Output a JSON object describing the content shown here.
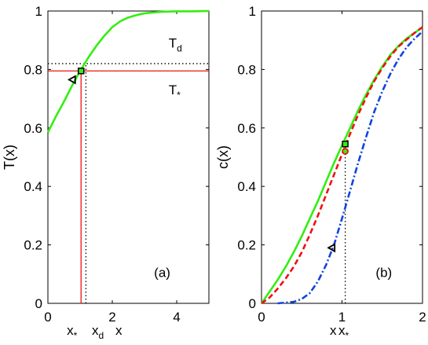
{
  "chart_data": [
    {
      "type": "line",
      "panel_label": "(a)",
      "ylabel": "T(x)",
      "xlabel": "x",
      "xlim": [
        0,
        5
      ],
      "ylim": [
        0,
        1
      ],
      "x_ticks": [
        "0",
        "2",
        "4"
      ],
      "x_tick_values": [
        0,
        2,
        4
      ],
      "y_ticks": [
        "0",
        "0.2",
        "0.4",
        "0.6",
        "0.8",
        "1"
      ],
      "y_tick_values": [
        0,
        0.2,
        0.4,
        0.6,
        0.8,
        1
      ],
      "extra_xlabels": [
        {
          "text": "x",
          "sub": "*",
          "x": 0.75
        },
        {
          "text": "x",
          "sub": "d",
          "x": 1.55
        }
      ],
      "annotations": [
        {
          "text": "T",
          "sub": "d",
          "x": 3.75,
          "y": 0.875
        },
        {
          "text": "T",
          "sub": "*",
          "x": 3.75,
          "y": 0.715
        }
      ],
      "series": [
        {
          "color": "#33ee11",
          "style": "solid",
          "x": [
            0,
            0.25,
            0.5,
            0.75,
            1.0,
            1.25,
            1.5,
            1.75,
            2.0,
            2.25,
            2.5,
            2.75,
            3.0,
            3.25,
            3.5,
            3.75,
            4.0,
            4.5,
            5.0
          ],
          "y": [
            0.585,
            0.64,
            0.69,
            0.745,
            0.795,
            0.84,
            0.88,
            0.915,
            0.945,
            0.965,
            0.978,
            0.986,
            0.992,
            0.995,
            0.997,
            0.998,
            0.999,
            0.999,
            1.0
          ]
        }
      ],
      "ref_lines": [
        {
          "orient": "h",
          "value": 0.795,
          "color": "#ee1111",
          "style": "solid",
          "from": 0,
          "to": 5
        },
        {
          "orient": "v",
          "value": 1.03,
          "color": "#ee1111",
          "style": "solid",
          "from": 0,
          "to": 0.795
        },
        {
          "orient": "h",
          "value": 0.82,
          "color": "#000000",
          "style": "dotted",
          "from": 0,
          "to": 5
        },
        {
          "orient": "v",
          "value": 1.18,
          "color": "#000000",
          "style": "dotted",
          "from": 0,
          "to": 0.82
        }
      ],
      "markers": [
        {
          "shape": "square",
          "x": 1.03,
          "y": 0.795,
          "fill": "#33ee11",
          "stroke": "#000000"
        },
        {
          "shape": "triangle-left",
          "x": 0.75,
          "y": 0.765,
          "fill": "none",
          "stroke": "#000000"
        }
      ]
    },
    {
      "type": "line",
      "panel_label": "(b)",
      "ylabel": "c(x)",
      "xlim": [
        0,
        2
      ],
      "ylim": [
        0,
        1
      ],
      "x_ticks": [
        "0",
        "1",
        "2"
      ],
      "x_tick_values": [
        0,
        1,
        2
      ],
      "y_ticks": [
        "0",
        "0.2",
        "0.4",
        "0.6",
        "0.8",
        "1"
      ],
      "y_tick_values": [
        0,
        0.2,
        0.4,
        0.6,
        0.8,
        1
      ],
      "extra_xlabels": [
        {
          "text": "x",
          "sub": "",
          "x": 0.89
        },
        {
          "text": "x",
          "sub": "*",
          "x": 1.02
        }
      ],
      "series": [
        {
          "color": "#33ee11",
          "style": "solid",
          "x": [
            0,
            0.1,
            0.2,
            0.3,
            0.4,
            0.5,
            0.6,
            0.7,
            0.8,
            0.9,
            1.0,
            1.1,
            1.2,
            1.3,
            1.4,
            1.5,
            1.6,
            1.7,
            1.8,
            1.9,
            2.0
          ],
          "y": [
            0,
            0.04,
            0.08,
            0.125,
            0.175,
            0.23,
            0.29,
            0.35,
            0.415,
            0.48,
            0.54,
            0.6,
            0.66,
            0.715,
            0.765,
            0.81,
            0.85,
            0.88,
            0.905,
            0.925,
            0.945
          ]
        },
        {
          "color": "#ee1111",
          "style": "dashed",
          "x": [
            0,
            0.1,
            0.2,
            0.3,
            0.4,
            0.5,
            0.6,
            0.7,
            0.8,
            0.9,
            1.0,
            1.1,
            1.2,
            1.3,
            1.4,
            1.5,
            1.6,
            1.7,
            1.8,
            1.9,
            2.0
          ],
          "y": [
            0,
            0.02,
            0.05,
            0.085,
            0.125,
            0.175,
            0.235,
            0.3,
            0.37,
            0.44,
            0.51,
            0.58,
            0.645,
            0.705,
            0.76,
            0.805,
            0.845,
            0.878,
            0.902,
            0.925,
            0.945
          ]
        },
        {
          "color": "#1144dd",
          "style": "dashdot",
          "x": [
            0.2,
            0.4,
            0.5,
            0.6,
            0.7,
            0.8,
            0.9,
            1.0,
            1.1,
            1.2,
            1.3,
            1.4,
            1.5,
            1.6,
            1.7,
            1.8,
            1.9,
            2.0
          ],
          "y": [
            0,
            0.005,
            0.015,
            0.035,
            0.075,
            0.13,
            0.2,
            0.29,
            0.385,
            0.48,
            0.57,
            0.655,
            0.725,
            0.785,
            0.835,
            0.875,
            0.905,
            0.93
          ]
        }
      ],
      "ref_lines": [
        {
          "orient": "v",
          "value": 1.04,
          "color": "#000000",
          "style": "dotted",
          "from": 0,
          "to": 0.55
        }
      ],
      "markers": [
        {
          "shape": "square",
          "x": 1.04,
          "y": 0.545,
          "fill": "#33ee11",
          "stroke": "#000000"
        },
        {
          "shape": "circle",
          "x": 1.04,
          "y": 0.52,
          "fill": "#33ee11",
          "stroke": "#ee1111"
        },
        {
          "shape": "triangle-left",
          "x": 0.87,
          "y": 0.19,
          "fill": "none",
          "stroke": "#000000"
        }
      ]
    }
  ]
}
